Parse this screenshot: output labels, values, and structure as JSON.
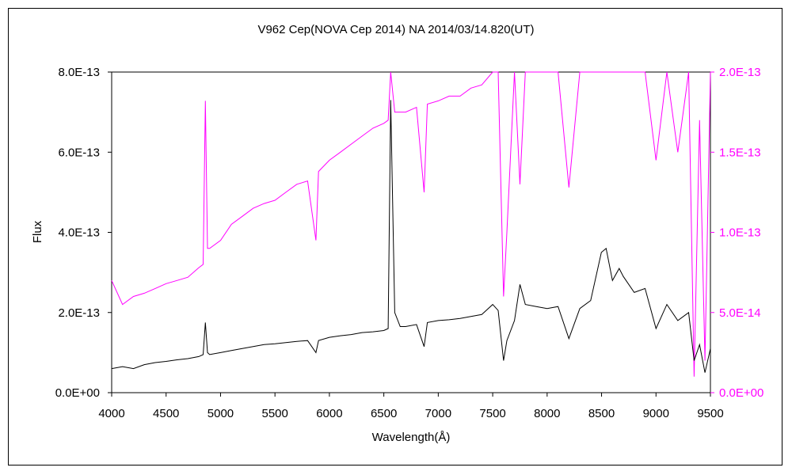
{
  "chart_data": {
    "type": "line",
    "title": "V962 Cep(NOVA Cep 2014)    NA    2014/03/14.820(UT)",
    "xlabel": "Wavelength(Å)",
    "ylabel": "Flux",
    "xlim": [
      4000,
      9500
    ],
    "ylim_left": [
      0,
      8e-13
    ],
    "ylim_right": [
      0,
      2e-13
    ],
    "x_ticks": [
      4000,
      4500,
      5000,
      5500,
      6000,
      6500,
      7000,
      7500,
      8000,
      8500,
      9000,
      9500
    ],
    "x_tick_labels": [
      "4000",
      "4500",
      "5000",
      "5500",
      "6000",
      "6500",
      "7000",
      "7500",
      "8000",
      "8500",
      "9000",
      "9500"
    ],
    "y_left_ticks": [
      0,
      2e-13,
      4e-13,
      6e-13,
      8e-13
    ],
    "y_left_tick_labels": [
      "0.0E+00",
      "2.0E-13",
      "4.0E-13",
      "6.0E-13",
      "8.0E-13"
    ],
    "y_right_ticks": [
      0,
      5e-14,
      1e-13,
      1.5e-13,
      2e-13
    ],
    "y_right_tick_labels": [
      "0.0E+00",
      "5.0E-14",
      "1.0E-13",
      "1.5E-13",
      "2.0E-13"
    ],
    "grid": false,
    "legend": "none",
    "colors": {
      "primary": "#000000",
      "secondary": "#ff00ff"
    },
    "series": [
      {
        "axis": "left",
        "color": "#000000",
        "points": [
          [
            4000,
            6e-14
          ],
          [
            4100,
            6.5e-14
          ],
          [
            4200,
            6e-14
          ],
          [
            4300,
            7e-14
          ],
          [
            4400,
            7.5e-14
          ],
          [
            4500,
            7.8e-14
          ],
          [
            4600,
            8.2e-14
          ],
          [
            4700,
            8.5e-14
          ],
          [
            4800,
            9e-14
          ],
          [
            4840,
            9.5e-14
          ],
          [
            4861,
            1.75e-13
          ],
          [
            4880,
            1e-13
          ],
          [
            4900,
            9.5e-14
          ],
          [
            5000,
            1e-13
          ],
          [
            5100,
            1.05e-13
          ],
          [
            5200,
            1.1e-13
          ],
          [
            5300,
            1.15e-13
          ],
          [
            5400,
            1.2e-13
          ],
          [
            5500,
            1.22e-13
          ],
          [
            5600,
            1.25e-13
          ],
          [
            5700,
            1.28e-13
          ],
          [
            5800,
            1.3e-13
          ],
          [
            5876,
            1e-13
          ],
          [
            5900,
            1.3e-13
          ],
          [
            6000,
            1.38e-13
          ],
          [
            6100,
            1.42e-13
          ],
          [
            6200,
            1.45e-13
          ],
          [
            6300,
            1.5e-13
          ],
          [
            6400,
            1.52e-13
          ],
          [
            6500,
            1.55e-13
          ],
          [
            6540,
            1.6e-13
          ],
          [
            6563,
            7.3e-13
          ],
          [
            6600,
            2e-13
          ],
          [
            6650,
            1.65e-13
          ],
          [
            6700,
            1.65e-13
          ],
          [
            6800,
            1.7e-13
          ],
          [
            6870,
            1.15e-13
          ],
          [
            6900,
            1.75e-13
          ],
          [
            7000,
            1.8e-13
          ],
          [
            7100,
            1.82e-13
          ],
          [
            7200,
            1.85e-13
          ],
          [
            7300,
            1.9e-13
          ],
          [
            7400,
            1.95e-13
          ],
          [
            7500,
            2.2e-13
          ],
          [
            7550,
            2.05e-13
          ],
          [
            7600,
            8e-14
          ],
          [
            7630,
            1.3e-13
          ],
          [
            7700,
            1.8e-13
          ],
          [
            7750,
            2.7e-13
          ],
          [
            7800,
            2.2e-13
          ],
          [
            7900,
            2.15e-13
          ],
          [
            8000,
            2.1e-13
          ],
          [
            8100,
            2.15e-13
          ],
          [
            8200,
            1.35e-13
          ],
          [
            8300,
            2.1e-13
          ],
          [
            8400,
            2.3e-13
          ],
          [
            8498,
            3.5e-13
          ],
          [
            8542,
            3.6e-13
          ],
          [
            8600,
            2.8e-13
          ],
          [
            8662,
            3.1e-13
          ],
          [
            8700,
            2.9e-13
          ],
          [
            8800,
            2.5e-13
          ],
          [
            8900,
            2.6e-13
          ],
          [
            9000,
            1.6e-13
          ],
          [
            9100,
            2.2e-13
          ],
          [
            9200,
            1.8e-13
          ],
          [
            9300,
            2e-13
          ],
          [
            9350,
            8e-14
          ],
          [
            9400,
            1.2e-13
          ],
          [
            9450,
            5e-14
          ],
          [
            9500,
            1.1e-13
          ]
        ]
      },
      {
        "axis": "right",
        "color": "#ff00ff",
        "points": [
          [
            4000,
            7e-14
          ],
          [
            4100,
            5.5e-14
          ],
          [
            4200,
            6e-14
          ],
          [
            4300,
            6.2e-14
          ],
          [
            4400,
            6.5e-14
          ],
          [
            4500,
            6.8e-14
          ],
          [
            4600,
            7e-14
          ],
          [
            4700,
            7.2e-14
          ],
          [
            4800,
            7.8e-14
          ],
          [
            4840,
            8e-14
          ],
          [
            4861,
            1.82e-13
          ],
          [
            4880,
            9e-14
          ],
          [
            4900,
            9e-14
          ],
          [
            5000,
            9.5e-14
          ],
          [
            5100,
            1.05e-13
          ],
          [
            5200,
            1.1e-13
          ],
          [
            5300,
            1.15e-13
          ],
          [
            5400,
            1.18e-13
          ],
          [
            5500,
            1.2e-13
          ],
          [
            5600,
            1.25e-13
          ],
          [
            5700,
            1.3e-13
          ],
          [
            5800,
            1.32e-13
          ],
          [
            5876,
            9.5e-14
          ],
          [
            5900,
            1.38e-13
          ],
          [
            6000,
            1.45e-13
          ],
          [
            6100,
            1.5e-13
          ],
          [
            6200,
            1.55e-13
          ],
          [
            6300,
            1.6e-13
          ],
          [
            6400,
            1.65e-13
          ],
          [
            6500,
            1.68e-13
          ],
          [
            6540,
            1.7e-13
          ],
          [
            6563,
            2e-13
          ],
          [
            6600,
            1.75e-13
          ],
          [
            6650,
            1.75e-13
          ],
          [
            6700,
            1.75e-13
          ],
          [
            6800,
            1.78e-13
          ],
          [
            6870,
            1.25e-13
          ],
          [
            6900,
            1.8e-13
          ],
          [
            7000,
            1.82e-13
          ],
          [
            7100,
            1.85e-13
          ],
          [
            7200,
            1.85e-13
          ],
          [
            7300,
            1.9e-13
          ],
          [
            7400,
            1.92e-13
          ],
          [
            7500,
            2e-13
          ],
          [
            7550,
            2e-13
          ],
          [
            7600,
            6e-14
          ],
          [
            7630,
            1e-13
          ],
          [
            7700,
            2e-13
          ],
          [
            7750,
            1.3e-13
          ],
          [
            7800,
            2e-13
          ],
          [
            7900,
            2e-13
          ],
          [
            8000,
            2e-13
          ],
          [
            8100,
            2e-13
          ],
          [
            8200,
            1.28e-13
          ],
          [
            8300,
            2e-13
          ],
          [
            8400,
            2e-13
          ],
          [
            8498,
            2e-13
          ],
          [
            8542,
            2e-13
          ],
          [
            8600,
            2e-13
          ],
          [
            8662,
            2e-13
          ],
          [
            8700,
            2e-13
          ],
          [
            8800,
            2e-13
          ],
          [
            8900,
            2e-13
          ],
          [
            9000,
            1.45e-13
          ],
          [
            9100,
            2e-13
          ],
          [
            9200,
            1.5e-13
          ],
          [
            9300,
            2e-13
          ],
          [
            9350,
            1e-14
          ],
          [
            9400,
            1.7e-13
          ],
          [
            9450,
            2e-14
          ],
          [
            9500,
            2e-13
          ]
        ]
      }
    ]
  }
}
